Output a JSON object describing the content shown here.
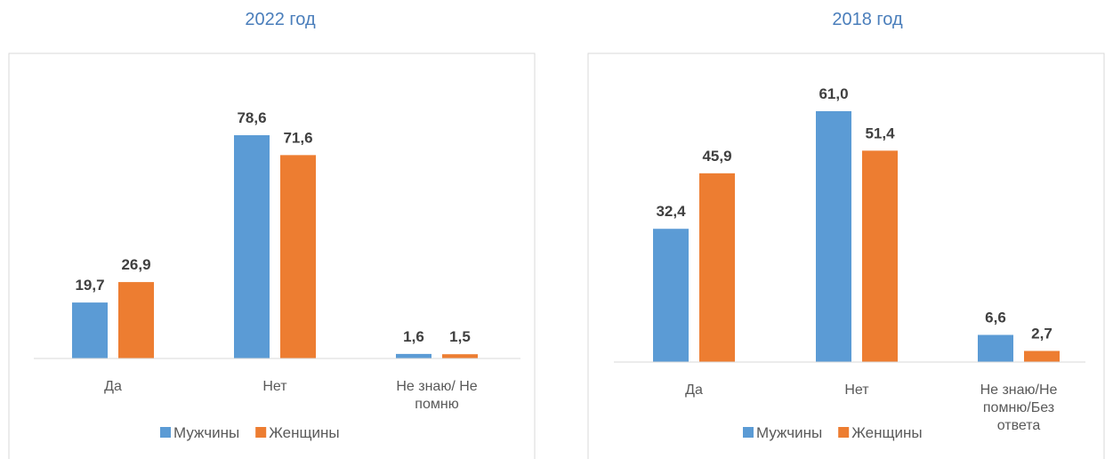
{
  "chart_data": [
    {
      "type": "bar",
      "title": "2022 год",
      "categories": [
        "Да",
        "Нет",
        "Не знаю/ Не помню"
      ],
      "series": [
        {
          "name": "Мужчины",
          "color": "#5b9bd5",
          "values": [
            19.7,
            78.6,
            1.6
          ],
          "value_labels": [
            "19,7",
            "78,6",
            "1,6"
          ]
        },
        {
          "name": "Женщины",
          "color": "#ed7d31",
          "values": [
            26.9,
            71.6,
            1.5
          ],
          "value_labels": [
            "26,9",
            "71,6",
            "1,5"
          ]
        }
      ]
    },
    {
      "type": "bar",
      "title": "2018 год",
      "categories": [
        "Да",
        "Нет",
        "Не знаю/Не помню/Без ответа"
      ],
      "series": [
        {
          "name": "Мужчины",
          "color": "#5b9bd5",
          "values": [
            32.4,
            61.0,
            6.6
          ],
          "value_labels": [
            "32,4",
            "61,0",
            "6,6"
          ]
        },
        {
          "name": "Женщины",
          "color": "#ed7d31",
          "values": [
            45.9,
            51.4,
            2.7
          ],
          "value_labels": [
            "45,9",
            "51,4",
            "2,7"
          ]
        }
      ]
    }
  ]
}
